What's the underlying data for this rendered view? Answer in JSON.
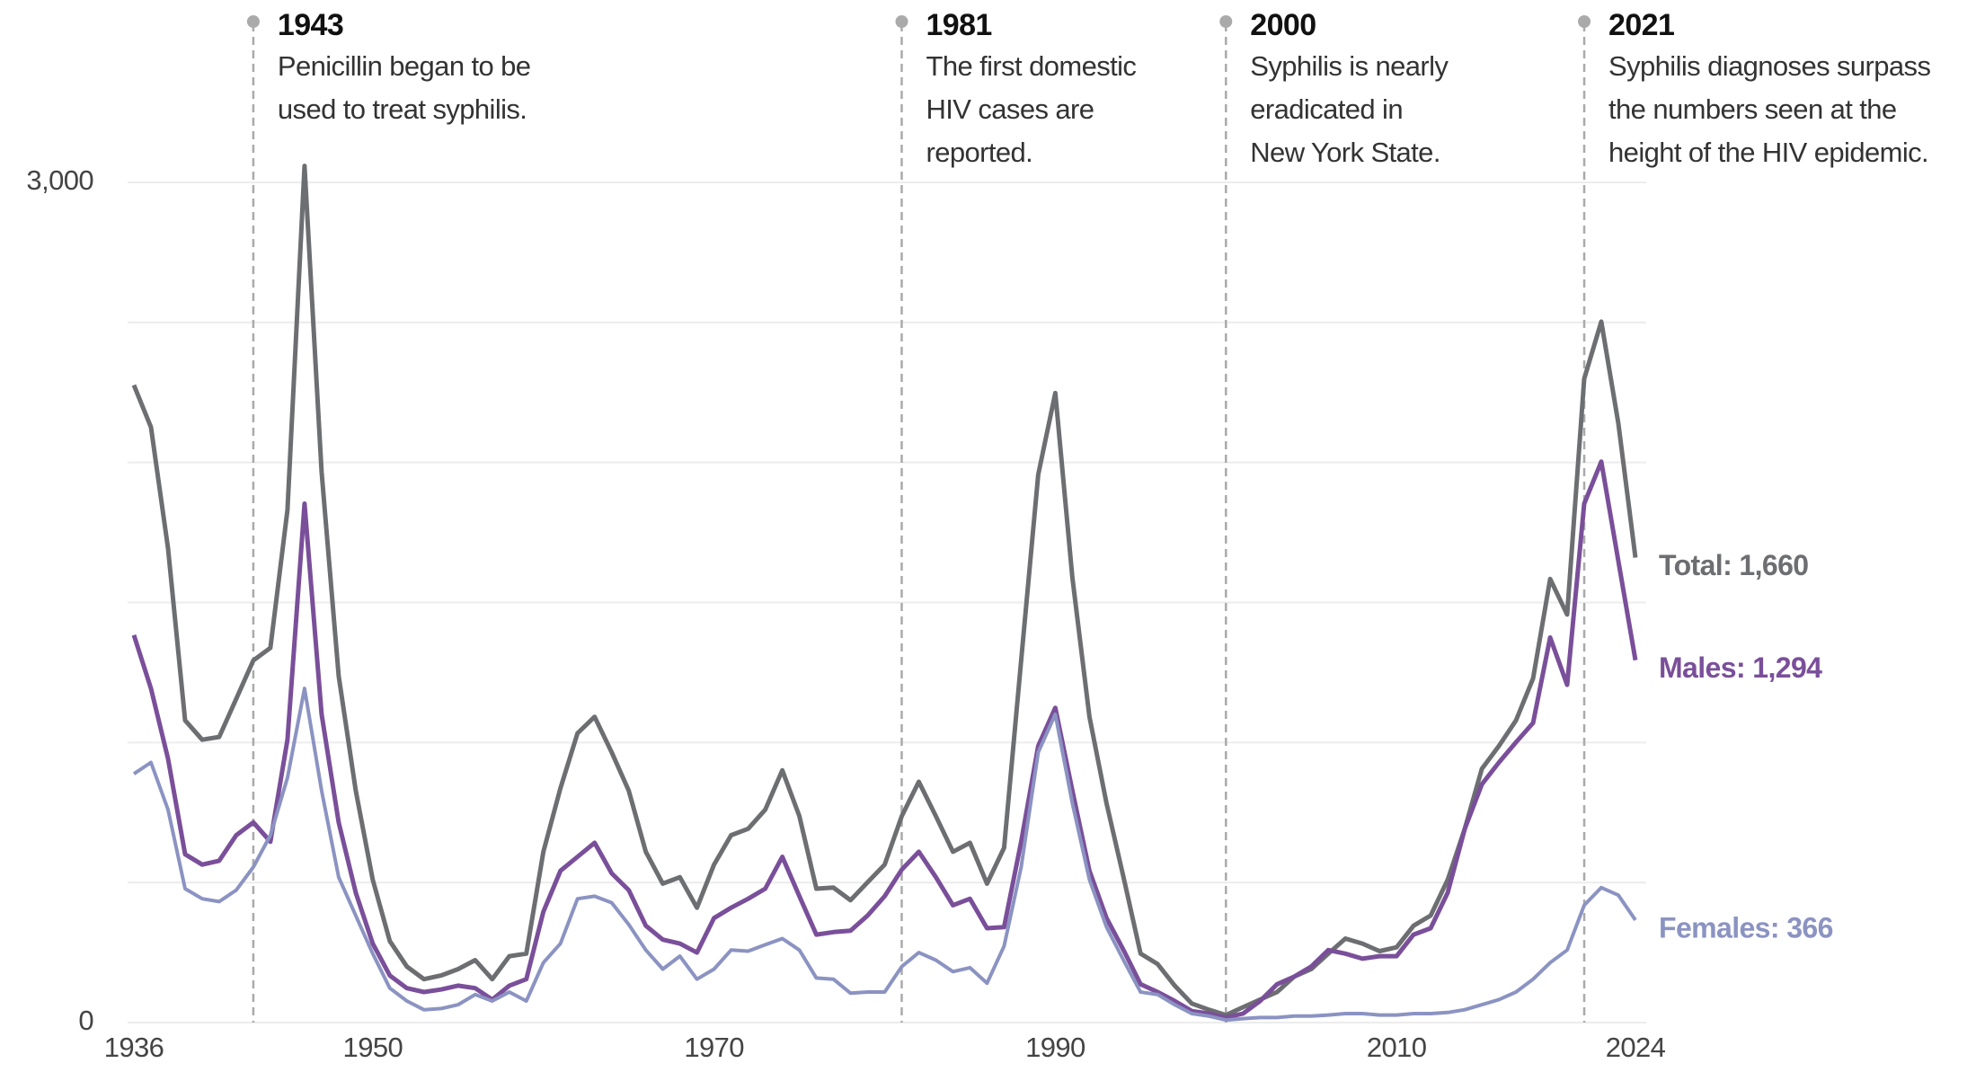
{
  "chart_data": {
    "type": "line",
    "xlim": [
      1936,
      2024
    ],
    "xticks": [
      1936,
      1950,
      1970,
      1990,
      2010,
      2024
    ],
    "ylim": [
      0,
      3000
    ],
    "yticks": [
      0,
      {
        "value": 3000,
        "label": "3,000"
      }
    ],
    "ygrid": [
      0,
      500,
      1000,
      1500,
      2000,
      2500,
      3000
    ],
    "grid": true,
    "x": [
      1936,
      1937,
      1938,
      1939,
      1940,
      1941,
      1942,
      1943,
      1944,
      1945,
      1946,
      1947,
      1948,
      1949,
      1950,
      1951,
      1952,
      1953,
      1954,
      1955,
      1956,
      1957,
      1958,
      1959,
      1960,
      1961,
      1962,
      1963,
      1964,
      1965,
      1966,
      1967,
      1968,
      1969,
      1970,
      1971,
      1972,
      1973,
      1974,
      1975,
      1976,
      1977,
      1978,
      1979,
      1980,
      1981,
      1982,
      1983,
      1984,
      1985,
      1986,
      1987,
      1988,
      1989,
      1990,
      1991,
      1992,
      1993,
      1994,
      1995,
      1996,
      1997,
      1998,
      1999,
      2000,
      2001,
      2002,
      2003,
      2004,
      2005,
      2006,
      2007,
      2008,
      2009,
      2010,
      2011,
      2012,
      2013,
      2014,
      2015,
      2016,
      2017,
      2018,
      2019,
      2020,
      2021,
      2022,
      2023,
      2024
    ],
    "series": [
      {
        "label": "Total: 1,660",
        "color": "#6d6e71",
        "width": 5,
        "values": [
          2276,
          2126,
          1693,
          1079,
          1010,
          1020,
          1156,
          1293,
          1338,
          1830,
          3059,
          1966,
          1238,
          828,
          510,
          291,
          200,
          155,
          168,
          191,
          223,
          155,
          237,
          246,
          610,
          837,
          1033,
          1092,
          965,
          828,
          610,
          496,
          519,
          410,
          564,
          669,
          692,
          760,
          901,
          737,
          478,
          482,
          437,
          501,
          564,
          737,
          860,
          737,
          610,
          642,
          496,
          624,
          1293,
          1957,
          2248,
          1589,
          1092,
          783,
          519,
          246,
          209,
          132,
          68,
          46,
          27,
          55,
          82,
          109,
          164,
          191,
          246,
          300,
          282,
          255,
          269,
          346,
          382,
          510,
          692,
          906,
          988,
          1079,
          1229,
          1584,
          1457,
          2299,
          2503,
          2139,
          1660
        ]
      },
      {
        "label": "Males: 1,294",
        "color": "#7a4f9a",
        "width": 5,
        "values": [
          1384,
          1193,
          942,
          601,
          564,
          578,
          669,
          715,
          646,
          1010,
          1853,
          1101,
          715,
          464,
          282,
          168,
          123,
          109,
          118,
          132,
          123,
          82,
          132,
          155,
          396,
          542,
          592,
          642,
          533,
          473,
          346,
          296,
          282,
          250,
          373,
          410,
          442,
          478,
          592,
          451,
          314,
          323,
          328,
          382,
          451,
          546,
          610,
          519,
          419,
          442,
          337,
          341,
          646,
          988,
          1124,
          828,
          542,
          373,
          259,
          137,
          109,
          77,
          41,
          32,
          18,
          32,
          77,
          137,
          164,
          200,
          259,
          246,
          228,
          237,
          237,
          314,
          337,
          464,
          692,
          851,
          929,
          1001,
          1070,
          1375,
          1206,
          1853,
          2003,
          1648,
          1294
        ]
      },
      {
        "label": "Females: 366",
        "color": "#8b93c2",
        "width": 4,
        "values": [
          888,
          929,
          760,
          478,
          442,
          432,
          473,
          555,
          669,
          874,
          1193,
          828,
          519,
          382,
          246,
          123,
          77,
          46,
          50,
          64,
          100,
          77,
          109,
          77,
          214,
          282,
          442,
          451,
          428,
          350,
          259,
          191,
          237,
          155,
          191,
          259,
          255,
          278,
          300,
          259,
          159,
          155,
          105,
          109,
          109,
          200,
          250,
          223,
          182,
          196,
          141,
          273,
          555,
          965,
          1101,
          783,
          510,
          341,
          223,
          109,
          100,
          64,
          32,
          23,
          9,
          14,
          18,
          18,
          23,
          23,
          27,
          32,
          32,
          27,
          27,
          32,
          32,
          36,
          46,
          64,
          82,
          109,
          155,
          214,
          259,
          419,
          482,
          455,
          366
        ]
      }
    ],
    "annotations": [
      {
        "year": 1943,
        "lines": [
          "Penicillin began to be",
          "used to treat syphilis."
        ]
      },
      {
        "year": 1981,
        "lines": [
          "The first domestic",
          "HIV cases are",
          "reported."
        ]
      },
      {
        "year": 2000,
        "lines": [
          "Syphilis is nearly",
          "eradicated in",
          "New York State."
        ]
      },
      {
        "year": 2021,
        "lines": [
          "Syphilis diagnoses surpass",
          "the numbers seen at the",
          "height of the HIV epidemic."
        ]
      }
    ]
  }
}
